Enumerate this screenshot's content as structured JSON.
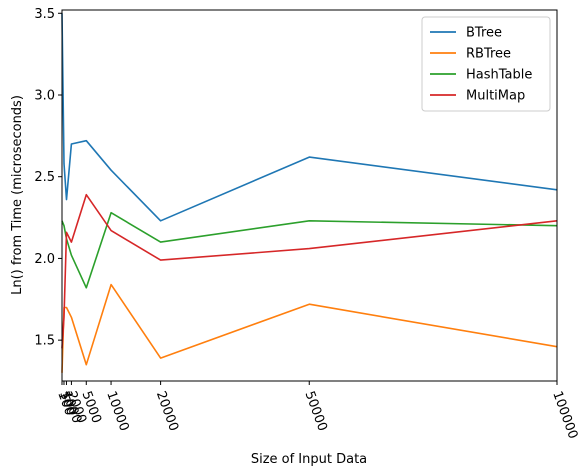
{
  "chart_data": {
    "type": "line",
    "xlabel": "Size of Input Data",
    "ylabel": "Ln() from Time (microseconds)",
    "x": [
      100,
      500,
      1000,
      2000,
      5000,
      10000,
      20000,
      50000,
      100000
    ],
    "x_tick_labels": [
      "100",
      "500",
      "1000",
      "2000",
      "5000",
      "10000",
      "20000",
      "50000",
      "100000"
    ],
    "xlim": [
      100,
      100000
    ],
    "y_ticks": [
      1.5,
      2.0,
      2.5,
      3.0,
      3.5
    ],
    "y_tick_labels": [
      "1.5",
      "2.0",
      "2.5",
      "3.0",
      "3.5"
    ],
    "ylim": [
      1.25,
      3.52
    ],
    "grid": false,
    "legend_position": "top-right",
    "series": [
      {
        "name": "BTree",
        "color": "#1f77b4",
        "values": [
          3.5,
          2.58,
          2.36,
          2.7,
          2.72,
          2.54,
          2.23,
          2.62,
          2.42
        ]
      },
      {
        "name": "RBTree",
        "color": "#ff7f0e",
        "values": [
          1.3,
          1.7,
          1.7,
          1.64,
          1.35,
          1.84,
          1.39,
          1.72,
          1.46
        ]
      },
      {
        "name": "HashTable",
        "color": "#2ca02c",
        "values": [
          2.23,
          2.2,
          2.12,
          2.02,
          1.82,
          2.28,
          2.1,
          2.23,
          2.2
        ]
      },
      {
        "name": "MultiMap",
        "color": "#d62728",
        "values": [
          1.45,
          1.64,
          2.16,
          2.1,
          2.39,
          2.17,
          1.99,
          2.06,
          2.23
        ]
      }
    ]
  }
}
